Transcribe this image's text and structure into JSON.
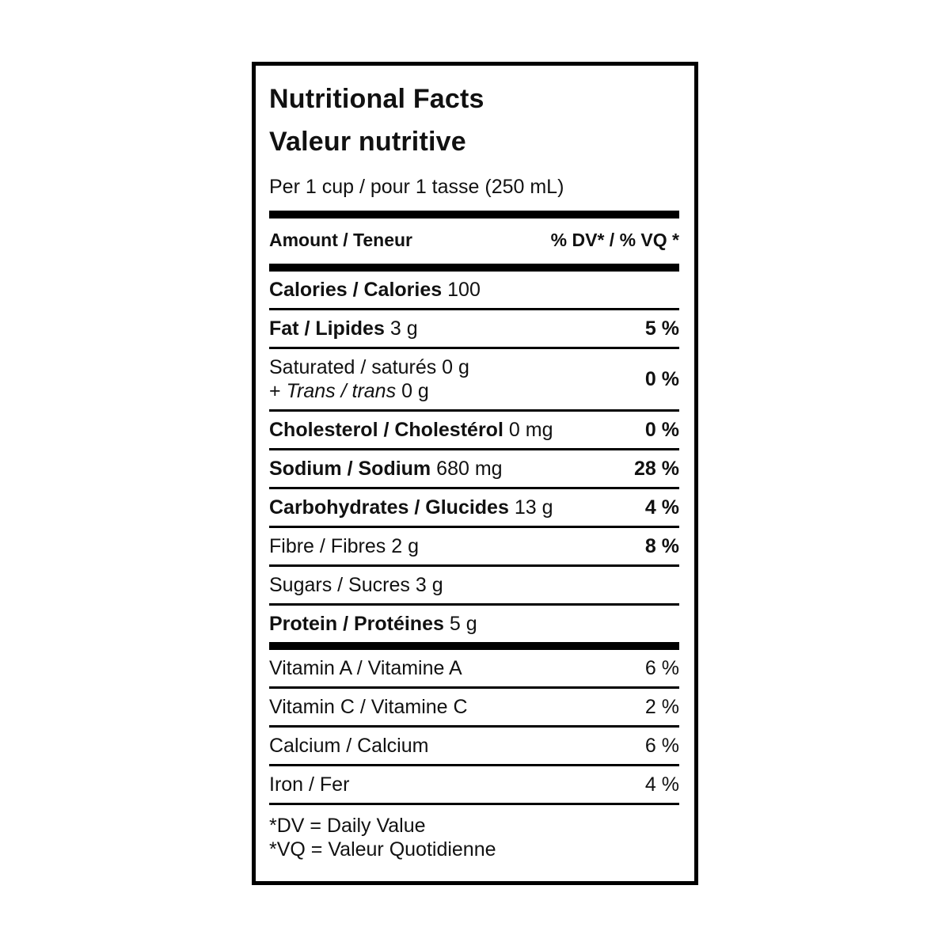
{
  "label": {
    "title_en": "Nutritional Facts",
    "title_fr": "Valeur nutritive",
    "serving": "Per 1 cup / pour 1 tasse (250 mL)",
    "header": {
      "amount": "Amount / Teneur",
      "dv": "% DV* / % VQ *"
    },
    "rows": [
      {
        "name": "Calories / Calories",
        "amount": "100",
        "percent": ""
      },
      {
        "name": "Fat / Lipides",
        "amount": "3 g",
        "percent": "5 %"
      },
      {
        "line1": "Saturated / saturés 0 g",
        "line2_plus": "+",
        "line2_italic": "Trans / trans",
        "line2_amount": "0 g",
        "percent": "0 %"
      },
      {
        "name": "Cholesterol / Cholestérol",
        "amount": "0 mg",
        "percent": "0 %"
      },
      {
        "name": "Sodium / Sodium",
        "amount": "680 mg",
        "percent": "28 %"
      },
      {
        "name": "Carbohydrates / Glucides",
        "amount": "13 g",
        "percent": "4 %"
      },
      {
        "name": "Fibre / Fibres",
        "amount": "2 g",
        "percent": "8 %"
      },
      {
        "name": "Sugars / Sucres",
        "amount": "3 g",
        "percent": ""
      },
      {
        "name": "Protein / Protéines",
        "amount": "5 g",
        "percent": ""
      }
    ],
    "micronutrients": [
      {
        "name": "Vitamin A / Vitamine A",
        "percent": "6 %"
      },
      {
        "name": "Vitamin C / Vitamine C",
        "percent": "2 %"
      },
      {
        "name": "Calcium / Calcium",
        "percent": "6 %"
      },
      {
        "name": "Iron / Fer",
        "percent": "4 %"
      }
    ],
    "footnotes": [
      "*DV = Daily Value",
      "*VQ = Valeur Quotidienne"
    ],
    "colors": {
      "text": "#111111",
      "rule": "#000000",
      "background": "#ffffff"
    }
  }
}
